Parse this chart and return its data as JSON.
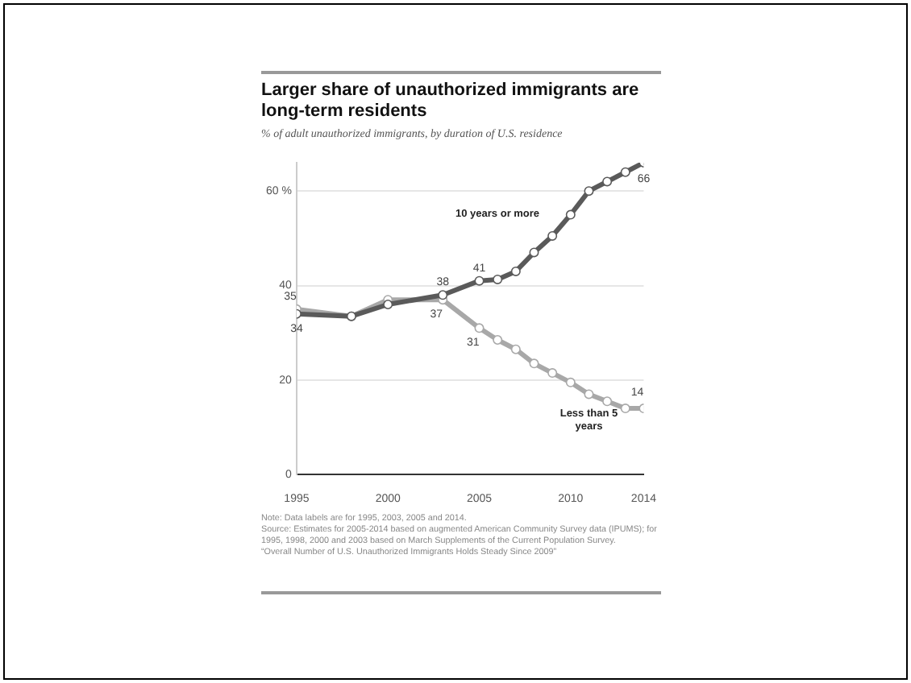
{
  "chart_data": {
    "type": "line",
    "title": "Larger share of unauthorized immigrants are long-term residents",
    "subtitle": "% of adult unauthorized immigrants, by duration of U.S. residence",
    "x": [
      1995,
      1998,
      2000,
      2003,
      2005,
      2006,
      2007,
      2008,
      2009,
      2010,
      2011,
      2012,
      2013,
      2014
    ],
    "series": [
      {
        "name": "10 years or more",
        "color": "#5a5a5a",
        "values": [
          34,
          33.5,
          36,
          38,
          41,
          41.3,
          43,
          47,
          50.5,
          55,
          60,
          62,
          64,
          66
        ],
        "value_labels": [
          "34",
          null,
          null,
          "38",
          "41",
          null,
          null,
          null,
          null,
          null,
          null,
          null,
          null,
          "66"
        ]
      },
      {
        "name": "Less than 5 years",
        "color": "#a8a8a8",
        "values": [
          35,
          33.5,
          37,
          37,
          31,
          28.5,
          26.5,
          23.5,
          21.5,
          19.5,
          17,
          15.5,
          14,
          14
        ],
        "value_labels": [
          "35",
          null,
          null,
          "37",
          "31",
          null,
          null,
          null,
          null,
          null,
          null,
          null,
          null,
          "14"
        ]
      }
    ],
    "xlim": [
      1995,
      2014
    ],
    "xticks": [
      1995,
      2000,
      2005,
      2010,
      2014
    ],
    "ylim": [
      0,
      66
    ],
    "yticks": [
      0,
      20,
      40,
      {
        "value": 60,
        "label": "60 %"
      }
    ],
    "grid": "y",
    "legend": false,
    "marker": "circle",
    "line_style": "solid",
    "annotations": [
      "Note: Data labels are for 1995, 2003, 2005 and 2014.",
      "Source: Estimates for 2005-2014 based on augmented American Community Survey data (IPUMS); for 1995, 1998, 2000 and 2003 based on March Supplements of the Current Population Survey.",
      "“Overall Number of U.S. Unauthorized Immigrants Holds Steady Since 2009”"
    ]
  }
}
